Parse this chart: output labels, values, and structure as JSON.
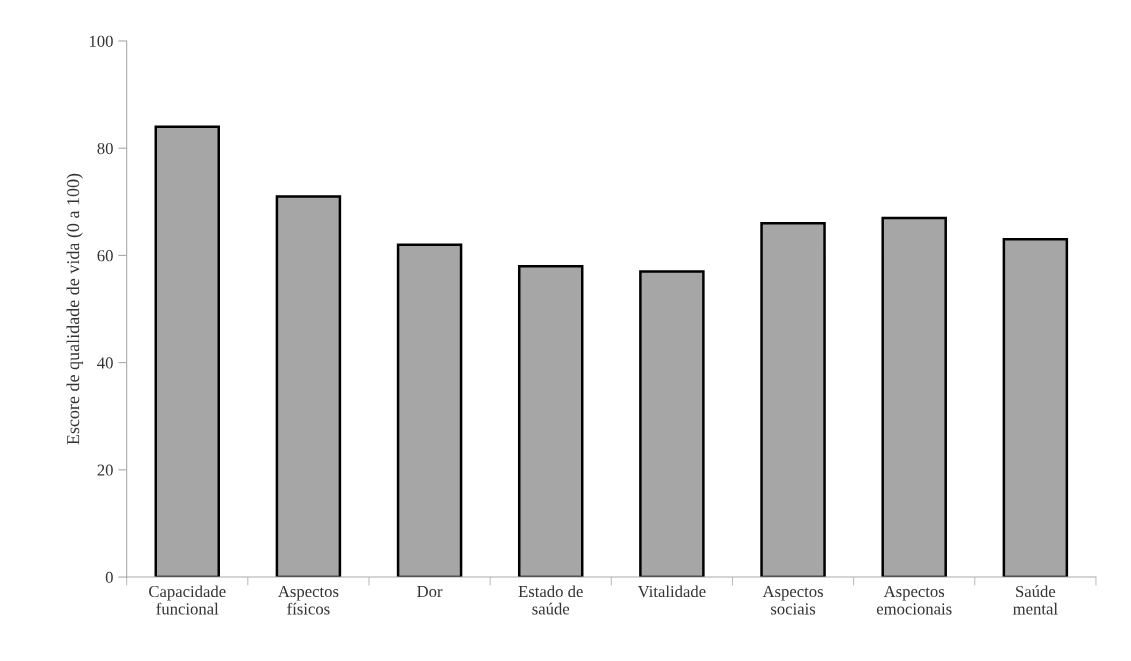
{
  "chart_data": {
    "type": "bar",
    "ylabel": "Escore de qualidade de vida (0 a 100)",
    "categories": [
      "Capacidade\nfuncional",
      "Aspectos\nfísicos",
      "Dor",
      "Estado de\nsaúde",
      "Vitalidade",
      "Aspectos\nsociais",
      "Aspectos\nemocionais",
      "Saúde\nmental"
    ],
    "values": [
      84,
      71,
      62,
      58,
      57,
      66,
      67,
      63
    ],
    "color": "#a6a6a6",
    "ylim": [
      0,
      100
    ],
    "yticks": [
      0,
      20,
      40,
      60,
      80,
      100
    ],
    "grid": false,
    "legend": false
  }
}
